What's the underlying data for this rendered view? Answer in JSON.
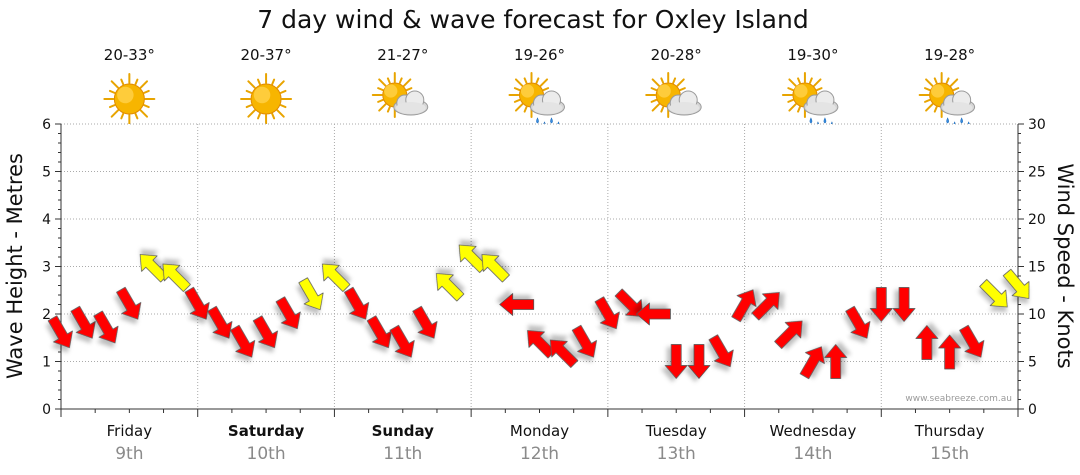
{
  "chart_data": {
    "type": "line",
    "title": "7 day wind & wave forecast for Oxley Island",
    "ylabel": "Wave Height - Metres",
    "y2label": "Wind Speed - Knots",
    "ylim": [
      0,
      6
    ],
    "y2lim": [
      0,
      30
    ],
    "yticks": [
      "0",
      "1",
      "2",
      "3",
      "4",
      "5",
      "6"
    ],
    "y2ticks": [
      "0",
      "5",
      "10",
      "15",
      "20",
      "25",
      "30"
    ],
    "days": [
      {
        "name": "Friday",
        "date": "9th",
        "temp": "20-33°",
        "icon": "sun-icon",
        "bold": false
      },
      {
        "name": "Saturday",
        "date": "10th",
        "temp": "20-37°",
        "icon": "sun-icon",
        "bold": true
      },
      {
        "name": "Sunday",
        "date": "11th",
        "temp": "21-27°",
        "icon": "sun-cloud-icon",
        "bold": true
      },
      {
        "name": "Monday",
        "date": "12th",
        "temp": "19-26°",
        "icon": "sun-rain-icon",
        "bold": false
      },
      {
        "name": "Tuesday",
        "date": "13th",
        "temp": "20-28°",
        "icon": "sun-cloud-icon",
        "bold": false
      },
      {
        "name": "Wednesday",
        "date": "14th",
        "temp": "19-30°",
        "icon": "sun-rain-icon",
        "bold": false
      },
      {
        "name": "Thursday",
        "date": "15th",
        "temp": "19-28°",
        "icon": "sun-rain-icon",
        "bold": false
      }
    ],
    "x_unit": "hour from start of Friday 9th",
    "series": [
      {
        "kind": "wind",
        "unit": "knots",
        "x": [
          0,
          4,
          8,
          12,
          16,
          20,
          24,
          28,
          32,
          36,
          40,
          44,
          48,
          52,
          56,
          60,
          64,
          68,
          72,
          76,
          80,
          84,
          88,
          92,
          96,
          100,
          104,
          108,
          112,
          116,
          120,
          124,
          128,
          132,
          136,
          140,
          144,
          148,
          152,
          156,
          160,
          164,
          168
        ],
        "values": [
          8,
          9,
          8.5,
          11,
          15,
          14,
          11,
          9,
          7,
          8,
          10,
          12,
          14,
          11,
          8,
          7,
          9,
          13,
          16,
          15,
          11,
          7,
          6,
          7,
          10,
          11,
          10,
          5,
          5,
          6,
          11,
          11,
          8,
          5,
          5,
          9,
          11,
          11,
          7,
          6,
          7,
          12,
          13
        ],
        "direction_deg": [
          60,
          60,
          60,
          60,
          225,
          225,
          60,
          60,
          60,
          60,
          60,
          60,
          225,
          60,
          60,
          60,
          60,
          225,
          225,
          225,
          180,
          225,
          225,
          60,
          60,
          45,
          180,
          90,
          90,
          60,
          300,
          315,
          315,
          300,
          270,
          60,
          90,
          90,
          270,
          270,
          60,
          45,
          50
        ],
        "color_rules": {
          "below_12": "#ff0000",
          "12_and_above": "#ffff00"
        }
      }
    ],
    "credit": "www.seabreeze.com.au"
  }
}
